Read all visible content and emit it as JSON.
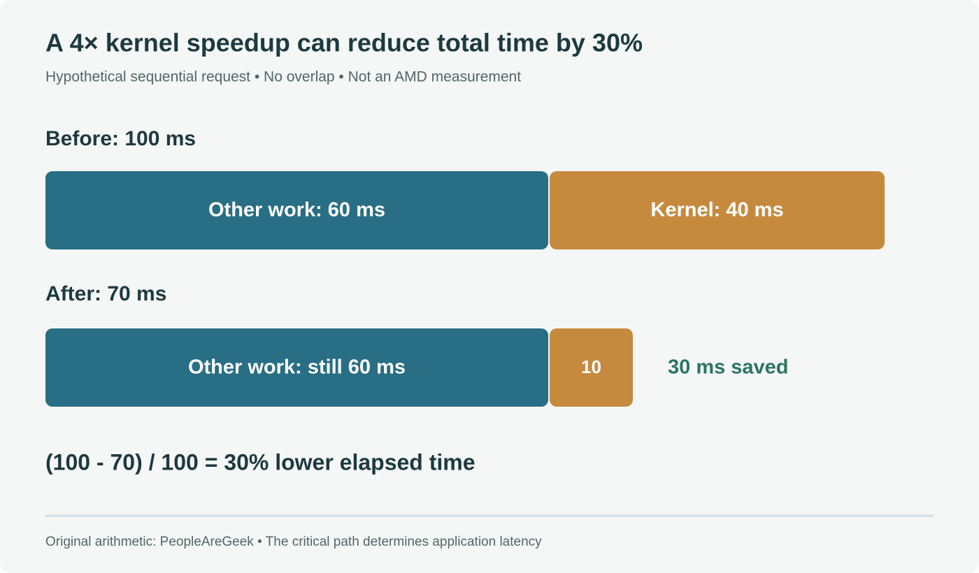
{
  "chart_data": {
    "type": "stacked-bar",
    "title": "A 4× kernel speedup can reduce total time by 30%",
    "subtitle": "Hypothetical sequential request • No overlap • Not an AMD measurement",
    "categories": [
      "Before: 100 ms",
      "After: 70 ms"
    ],
    "series": [
      {
        "color": "#286e84",
        "values": [
          60,
          60
        ],
        "value_labels": [
          "Other work: 60 ms",
          "Other work: still 60 ms"
        ]
      },
      {
        "color": "#c68a3f",
        "values": [
          40,
          10
        ],
        "value_labels": [
          "Kernel: 40 ms",
          "10"
        ]
      }
    ],
    "annotation": "30 ms saved",
    "annotation_color": "#2a7562",
    "formula": "(100 - 70) / 100 = 30% lower elapsed time",
    "footer": "Original arithmetic: PeopleAreGeek • The critical path determines application latency"
  }
}
